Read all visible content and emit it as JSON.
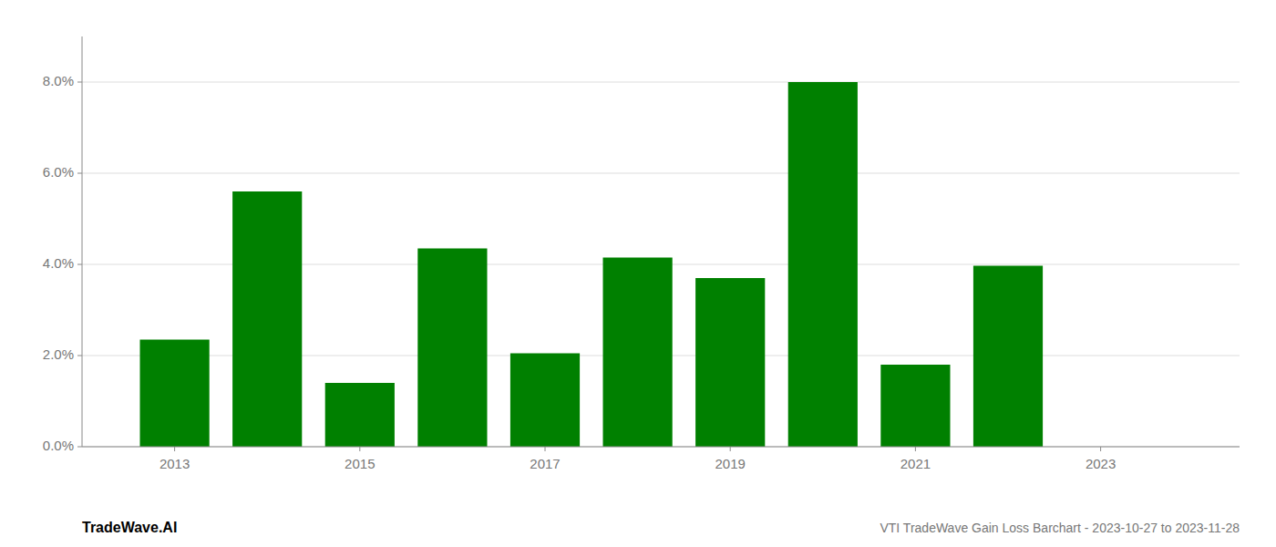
{
  "chart_data": {
    "type": "bar",
    "title": "VTI TradeWave Gain Loss Barchart - 2023-10-27 to 2023-11-28",
    "annotations": [
      "TradeWave.AI"
    ],
    "x": [
      2013,
      2014,
      2015,
      2016,
      2017,
      2018,
      2019,
      2020,
      2021,
      2022
    ],
    "values": [
      0.0235,
      0.056,
      0.014,
      0.0435,
      0.0205,
      0.0415,
      0.037,
      0.08,
      0.018,
      0.0397
    ],
    "color": "#008000",
    "xlim": [
      2012.0,
      2024.5
    ],
    "xticks": [
      2013,
      2015,
      2017,
      2019,
      2021,
      2023
    ],
    "ylim": [
      0.0,
      0.09
    ],
    "yticks": [
      {
        "value": 0.0,
        "label": "0.0%"
      },
      {
        "value": 0.02,
        "label": "2.0%"
      },
      {
        "value": 0.04,
        "label": "4.0%"
      },
      {
        "value": 0.06,
        "label": "6.0%"
      },
      {
        "value": 0.08,
        "label": "8.0%"
      }
    ],
    "grid": true
  }
}
